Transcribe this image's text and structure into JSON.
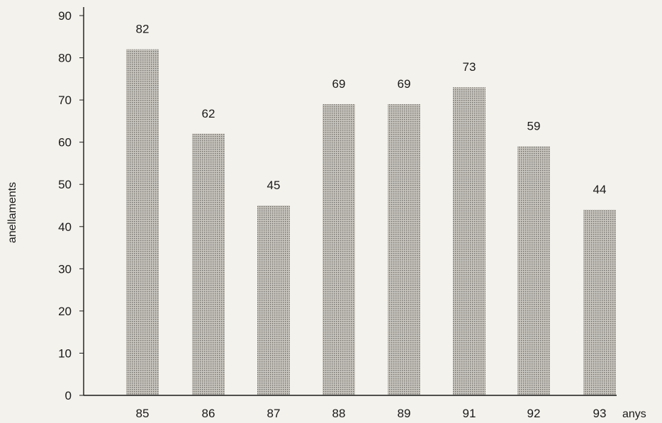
{
  "chart_data": {
    "type": "bar",
    "title": "",
    "xlabel": "anys",
    "ylabel": "anellaments",
    "categories": [
      "85",
      "86",
      "87",
      "88",
      "89",
      "91",
      "92",
      "93"
    ],
    "values": [
      82,
      62,
      45,
      69,
      69,
      73,
      59,
      44
    ],
    "data_labels": [
      "82",
      "62",
      "45",
      "69",
      "69",
      "73",
      "59",
      "44"
    ],
    "ylim": [
      0,
      90
    ],
    "yticks": [
      "0",
      "10",
      "20",
      "30",
      "40",
      "50",
      "60",
      "70",
      "80",
      "90"
    ],
    "grid": false,
    "legend": "none",
    "bar_color": "#b9b6b0",
    "background": "#f4f2ec"
  }
}
